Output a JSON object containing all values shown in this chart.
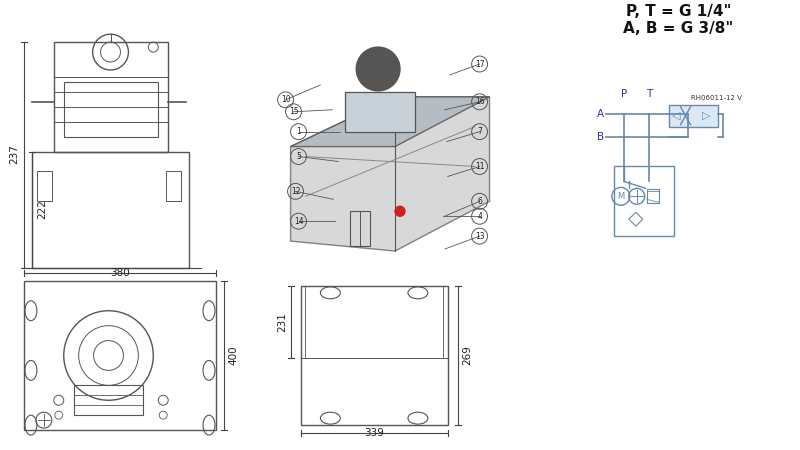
{
  "bg_color": "#ffffff",
  "line_color": "#555555",
  "blue_color": "#6688aa",
  "light_blue": "#aabbcc",
  "dark_line": "#333333",
  "title_text": "P, T = G 1/4\"\nA, B = G 3/8\"",
  "ref_code": "RH06011-12 V",
  "dim_237": "237",
  "dim_222": "222",
  "dim_380": "380",
  "dim_400": "400",
  "dim_231": "231",
  "dim_269": "269",
  "dim_339": "339",
  "part_numbers": [
    "1",
    "5",
    "10",
    "12",
    "14",
    "15",
    "16",
    "17",
    "7",
    "11",
    "6",
    "13",
    "4"
  ],
  "label_A": "A",
  "label_B": "B",
  "label_P": "P",
  "label_T": "T",
  "label_M": "M"
}
